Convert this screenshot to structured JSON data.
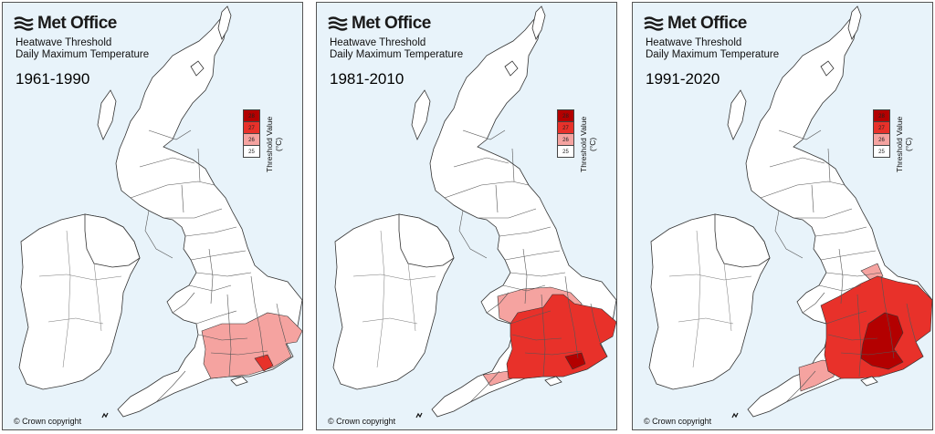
{
  "brand": {
    "name": "Met Office",
    "icon": "met-office-logo-icon"
  },
  "subtitle_line1": "Heatwave Threshold",
  "subtitle_line2": "Daily Maximum Temperature",
  "legend": {
    "title": "Threshold Value (°C)",
    "items": [
      {
        "label": "28",
        "color": "#b30000"
      },
      {
        "label": "27",
        "color": "#e8312a"
      },
      {
        "label": "26",
        "color": "#f5a3a0"
      },
      {
        "label": "25",
        "color": "#ffffff"
      }
    ]
  },
  "panels": [
    {
      "period": "1961-1990"
    },
    {
      "period": "1981-2010"
    },
    {
      "period": "1991-2020"
    }
  ],
  "copyright": "© Crown copyright",
  "colors": {
    "sea": "#e8f3fa",
    "land": "#ffffff",
    "border": "#333333"
  }
}
